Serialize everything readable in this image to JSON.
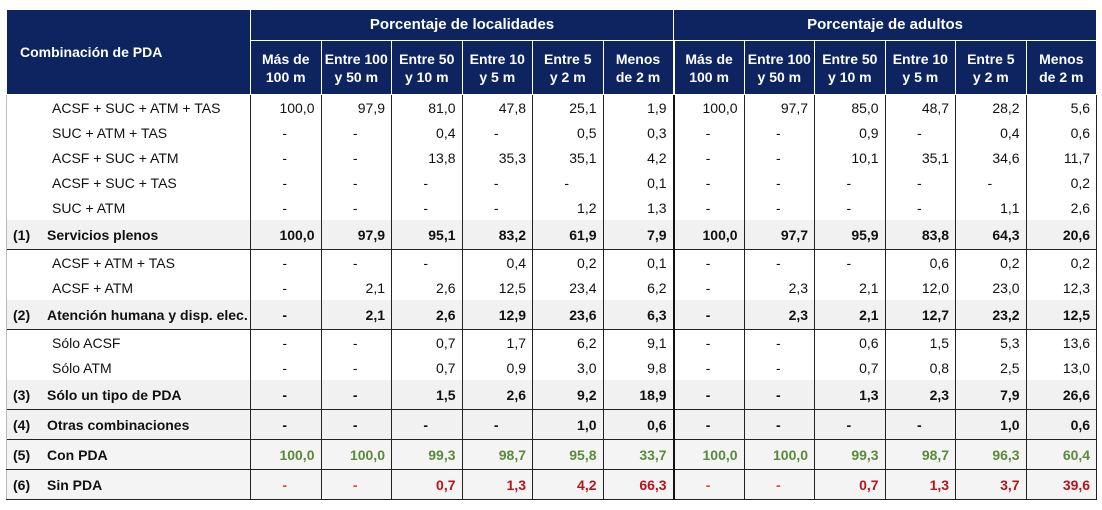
{
  "table": {
    "corner_header": "Combinación de PDA",
    "groups": [
      {
        "label": "Porcentaje de localidades"
      },
      {
        "label": "Porcentaje de adultos"
      }
    ],
    "columns": [
      {
        "line1": "Más de",
        "line2": "100 m"
      },
      {
        "line1": "Entre 100",
        "line2": "y 50 m"
      },
      {
        "line1": "Entre 50",
        "line2": "y 10 m"
      },
      {
        "line1": "Entre 10",
        "line2": "y 5 m"
      },
      {
        "line1": "Entre 5",
        "line2": "y 2 m"
      },
      {
        "line1": "Menos",
        "line2": "de 2 m"
      },
      {
        "line1": "Más de",
        "line2": "100 m"
      },
      {
        "line1": "Entre 100",
        "line2": "y 50 m"
      },
      {
        "line1": "Entre 50",
        "line2": "y 10 m"
      },
      {
        "line1": "Entre 10",
        "line2": "y 5 m"
      },
      {
        "line1": "Entre 5",
        "line2": "y 2 m"
      },
      {
        "line1": "Menos",
        "line2": "de 2 m"
      }
    ],
    "rows": [
      {
        "type": "detail",
        "num": "",
        "label": "ACSF + SUC + ATM + TAS",
        "values": [
          "100,0",
          "97,9",
          "81,0",
          "47,8",
          "25,1",
          "1,9",
          "100,0",
          "97,7",
          "85,0",
          "48,7",
          "28,2",
          "5,6"
        ]
      },
      {
        "type": "detail",
        "num": "",
        "label": "SUC + ATM + TAS",
        "values": [
          "-",
          "-",
          "0,4",
          "-",
          "0,5",
          "0,3",
          "-",
          "-",
          "0,9",
          "-",
          "0,4",
          "0,6"
        ]
      },
      {
        "type": "detail",
        "num": "",
        "label": "ACSF + SUC + ATM",
        "values": [
          "-",
          "-",
          "13,8",
          "35,3",
          "35,1",
          "4,2",
          "-",
          "-",
          "10,1",
          "35,1",
          "34,6",
          "11,7"
        ]
      },
      {
        "type": "detail",
        "num": "",
        "label": "ACSF + SUC + TAS",
        "values": [
          "-",
          "-",
          "-",
          "-",
          "-",
          "0,1",
          "-",
          "-",
          "-",
          "-",
          "-",
          "0,2"
        ]
      },
      {
        "type": "detail",
        "num": "",
        "label": "SUC + ATM",
        "values": [
          "-",
          "-",
          "-",
          "-",
          "1,2",
          "1,3",
          "-",
          "-",
          "-",
          "-",
          "1,1",
          "2,6"
        ]
      },
      {
        "type": "subtotal",
        "num": "(1)",
        "label": "Servicios plenos",
        "values": [
          "100,0",
          "97,9",
          "95,1",
          "83,2",
          "61,9",
          "7,9",
          "100,0",
          "97,7",
          "95,9",
          "83,8",
          "64,3",
          "20,6"
        ]
      },
      {
        "type": "detail",
        "num": "",
        "label": "ACSF +  ATM + TAS",
        "values": [
          "-",
          "-",
          "-",
          "0,4",
          "0,2",
          "0,1",
          "-",
          "-",
          "-",
          "0,6",
          "0,2",
          "0,2"
        ]
      },
      {
        "type": "detail",
        "num": "",
        "label": "ACSF + ATM",
        "values": [
          "-",
          "2,1",
          "2,6",
          "12,5",
          "23,4",
          "6,2",
          "-",
          "2,3",
          "2,1",
          "12,0",
          "23,0",
          "12,3"
        ]
      },
      {
        "type": "subtotal",
        "num": "(2)",
        "label": "Atención humana y disp. elec.",
        "values": [
          "-",
          "2,1",
          "2,6",
          "12,9",
          "23,6",
          "6,3",
          "-",
          "2,3",
          "2,1",
          "12,7",
          "23,2",
          "12,5"
        ]
      },
      {
        "type": "detail",
        "num": "",
        "label": "Sólo ACSF",
        "values": [
          "-",
          "-",
          "0,7",
          "1,7",
          "6,2",
          "9,1",
          "-",
          "-",
          "0,6",
          "1,5",
          "5,3",
          "13,6"
        ]
      },
      {
        "type": "detail",
        "num": "",
        "label": "Sólo ATM",
        "values": [
          "-",
          "-",
          "0,7",
          "0,9",
          "3,0",
          "9,8",
          "-",
          "-",
          "0,7",
          "0,8",
          "2,5",
          "13,0"
        ]
      },
      {
        "type": "subtotal",
        "num": "(3)",
        "label": "Sólo un tipo de PDA",
        "values": [
          "-",
          "-",
          "1,5",
          "2,6",
          "9,2",
          "18,9",
          "-",
          "-",
          "1,3",
          "2,3",
          "7,9",
          "26,6"
        ]
      },
      {
        "type": "subtotal",
        "num": "(4)",
        "label": "Otras combinaciones",
        "values": [
          "-",
          "-",
          "-",
          "-",
          "1,0",
          "0,6",
          "-",
          "-",
          "-",
          "-",
          "1,0",
          "0,6"
        ]
      },
      {
        "type": "total-pos",
        "num": "(5)",
        "label": "Con PDA",
        "values": [
          "100,0",
          "100,0",
          "99,3",
          "98,7",
          "95,8",
          "33,7",
          "100,0",
          "100,0",
          "99,3",
          "98,7",
          "96,3",
          "60,4"
        ]
      },
      {
        "type": "total-neg",
        "num": "(6)",
        "label": "Sin PDA",
        "values": [
          "-",
          "-",
          "0,7",
          "1,3",
          "4,2",
          "66,3",
          "-",
          "-",
          "0,7",
          "1,3",
          "3,7",
          "39,6"
        ]
      }
    ]
  },
  "colors": {
    "header_bg": "#0d2461",
    "subtotal_bg": "#f1f1f1",
    "positive": "#5a8a3a",
    "negative": "#b8141a"
  }
}
